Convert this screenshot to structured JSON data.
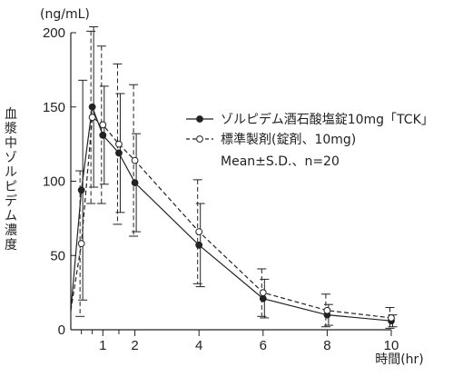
{
  "chart_data": {
    "type": "line",
    "y_unit": "(ng/mL)",
    "ylabel": "血漿中ゾルピデム濃度",
    "xlabel": "時間(hr)",
    "xlim": [
      0,
      10
    ],
    "ylim": [
      0,
      200
    ],
    "x_ticks": [
      1,
      2,
      4,
      6,
      8,
      10
    ],
    "y_ticks": [
      0,
      50,
      100,
      150,
      200
    ],
    "grid": false,
    "legend_position": "center-right",
    "legend_note": "Mean±S.D.、n=20",
    "series": [
      {
        "name": "ゾルピデム酒石酸塩錠10mg「TCK」",
        "marker": "filled",
        "line_style": "solid",
        "color": "#222222",
        "x": [
          0,
          0.33,
          0.67,
          1,
          1.5,
          2,
          4,
          6,
          8,
          10
        ],
        "y": [
          13,
          94,
          150,
          131,
          119,
          99,
          57,
          21,
          10,
          6
        ],
        "sd": [
          0,
          74,
          54,
          33,
          40,
          33,
          28,
          13,
          7,
          4
        ]
      },
      {
        "name": "標準製剤(錠剤、10mg)",
        "marker": "open",
        "line_style": "dashed",
        "color": "#222222",
        "x": [
          0,
          0.33,
          0.67,
          1,
          1.5,
          2,
          4,
          6,
          8,
          10
        ],
        "y": [
          13,
          58,
          143,
          138,
          125,
          114,
          66,
          25,
          13,
          8
        ],
        "sd": [
          0,
          49,
          58,
          53,
          54,
          51,
          35,
          16,
          11,
          7
        ]
      }
    ]
  }
}
